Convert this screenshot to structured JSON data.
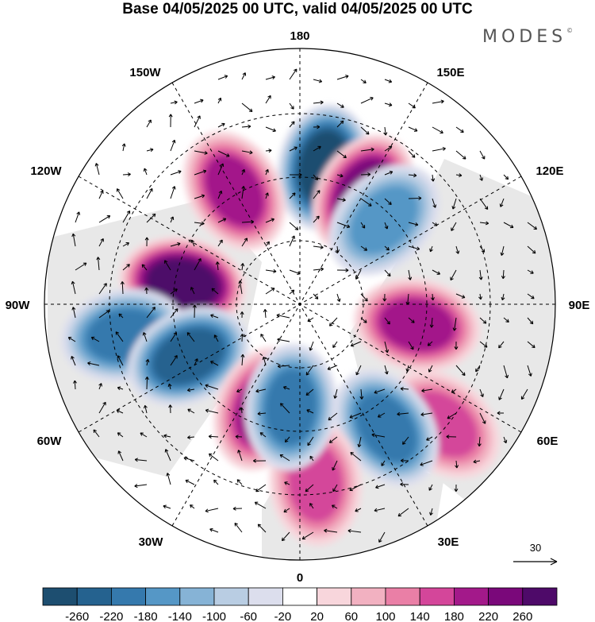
{
  "title": "Base 04/05/2025 00 UTC, valid 04/05/2025 00 UTC",
  "brand": "MODES",
  "brand_mark": "©",
  "map": {
    "projection": "north-polar-stereographic",
    "longitude_labels": {
      "top": "180",
      "top_right": "150E",
      "upper_right": "120E",
      "right": "90E",
      "lower_right": "60E",
      "bottom_right": "30E",
      "bottom": "0",
      "bottom_left": "30W",
      "lower_left": "60W",
      "left": "90W",
      "upper_left": "120W",
      "top_left": "150W"
    },
    "vector_reference": "30",
    "anomaly_centers": [
      {
        "lon": 170,
        "sign": "negative",
        "magnitude": 260
      },
      {
        "lon": 150,
        "sign": "positive",
        "magnitude": 240
      },
      {
        "lon": 135,
        "sign": "negative",
        "magnitude": 160
      },
      {
        "lon": -150,
        "sign": "positive",
        "magnitude": 180
      },
      {
        "lon": -100,
        "sign": "positive",
        "magnitude": 260
      },
      {
        "lon": -80,
        "sign": "negative",
        "magnitude": 200
      },
      {
        "lon": -65,
        "sign": "negative",
        "magnitude": 220
      },
      {
        "lon": 80,
        "sign": "positive",
        "magnitude": 200
      },
      {
        "lon": 50,
        "sign": "positive",
        "magnitude": 140
      },
      {
        "lon": 35,
        "sign": "negative",
        "magnitude": 180
      },
      {
        "lon": 5,
        "sign": "positive",
        "magnitude": 160
      },
      {
        "lon": -20,
        "sign": "positive",
        "magnitude": 200
      },
      {
        "lon": -5,
        "sign": "negative",
        "magnitude": 180
      }
    ]
  },
  "colorbar": {
    "tick_labels": [
      "-260",
      "-220",
      "-180",
      "-140",
      "-100",
      "-60",
      "-20",
      "20",
      "60",
      "100",
      "140",
      "180",
      "220",
      "260"
    ],
    "colors": [
      "#1d4e70",
      "#25628f",
      "#3579ad",
      "#5597c6",
      "#86b3d6",
      "#b9cde3",
      "#dcdeed",
      "#ffffff",
      "#f8d6dc",
      "#f2b1c1",
      "#ea7fa6",
      "#d4469a",
      "#a3198a",
      "#7a087a",
      "#4e0a69"
    ]
  },
  "colors": {
    "land_gray": "#e4e4e4",
    "ocean_white": "#ffffff"
  }
}
